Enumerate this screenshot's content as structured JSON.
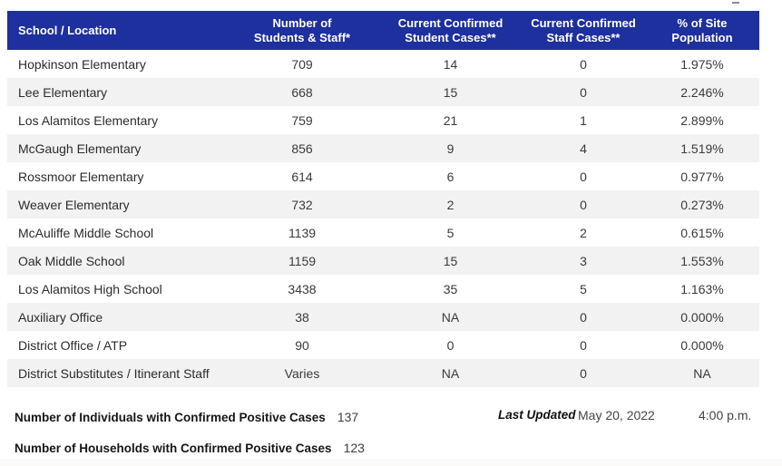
{
  "colors": {
    "header_bg": "#1E2F9E",
    "header_text": "#FFFFFF",
    "row_stripe": "#F2F2F2",
    "body_text": "#3A3A3A"
  },
  "table": {
    "columns": [
      "School / Location",
      "Number of\nStudents & Staff*",
      "Current Confirmed\nStudent Cases**",
      "Current Confirmed\nStaff Cases**",
      "% of Site\nPopulation"
    ],
    "rows": [
      {
        "school": "Hopkinson Elementary",
        "students_staff": "709",
        "student_cases": "14",
        "staff_cases": "0",
        "pct_site_population": "1.975%"
      },
      {
        "school": "Lee Elementary",
        "students_staff": "668",
        "student_cases": "15",
        "staff_cases": "0",
        "pct_site_population": "2.246%"
      },
      {
        "school": "Los Alamitos Elementary",
        "students_staff": "759",
        "student_cases": "21",
        "staff_cases": "1",
        "pct_site_population": "2.899%"
      },
      {
        "school": "McGaugh Elementary",
        "students_staff": "856",
        "student_cases": "9",
        "staff_cases": "4",
        "pct_site_population": "1.519%"
      },
      {
        "school": "Rossmoor Elementary",
        "students_staff": "614",
        "student_cases": "6",
        "staff_cases": "0",
        "pct_site_population": "0.977%"
      },
      {
        "school": "Weaver Elementary",
        "students_staff": "732",
        "student_cases": "2",
        "staff_cases": "0",
        "pct_site_population": "0.273%"
      },
      {
        "school": "McAuliffe Middle School",
        "students_staff": "1139",
        "student_cases": "5",
        "staff_cases": "2",
        "pct_site_population": "0.615%"
      },
      {
        "school": "Oak Middle School",
        "students_staff": "1159",
        "student_cases": "15",
        "staff_cases": "3",
        "pct_site_population": "1.553%"
      },
      {
        "school": "Los Alamitos High School",
        "students_staff": "3438",
        "student_cases": "35",
        "staff_cases": "5",
        "pct_site_population": "1.163%"
      },
      {
        "school": "Auxiliary Office",
        "students_staff": "38",
        "student_cases": "NA",
        "staff_cases": "0",
        "pct_site_population": "0.000%"
      },
      {
        "school": "District Office / ATP",
        "students_staff": "90",
        "student_cases": "0",
        "staff_cases": "0",
        "pct_site_population": "0.000%"
      },
      {
        "school": "District Substitutes / Itinerant Staff",
        "students_staff": "Varies",
        "student_cases": "NA",
        "staff_cases": "0",
        "pct_site_population": "NA"
      }
    ]
  },
  "summary": {
    "individuals_label": "Number of Individuals with Confirmed Positive Cases",
    "individuals_value": "137",
    "households_label": "Number of Households with Confirmed Positive Cases",
    "households_value": "123"
  },
  "last_updated": {
    "label": "Last Updated",
    "date": "May 20, 2022",
    "time": "4:00 p.m."
  }
}
